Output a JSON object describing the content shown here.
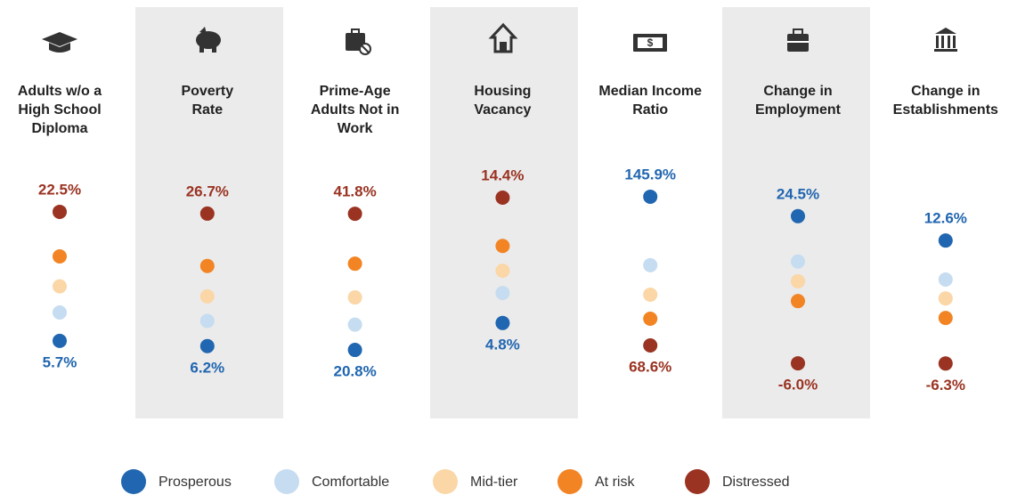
{
  "chart_data": {
    "type": "dot",
    "series": [
      {
        "name": "Prosperous",
        "color": "#2166b0"
      },
      {
        "name": "Comfortable",
        "color": "#c6dcf1"
      },
      {
        "name": "Mid-tier",
        "color": "#fbd6a6"
      },
      {
        "name": "At risk",
        "color": "#f28424"
      },
      {
        "name": "Distressed",
        "color": "#9a3322"
      }
    ],
    "panels": [
      {
        "title": [
          "Adults w/o a",
          "High School",
          "Diploma"
        ],
        "values": [
          5.7,
          9.4,
          12.8,
          16.7,
          22.5
        ],
        "value_labels": [
          "5.7%",
          null,
          null,
          null,
          "22.5%"
        ],
        "ylim": [
          1.4,
          26.9
        ]
      },
      {
        "title": [
          "Poverty",
          "Rate"
        ],
        "values": [
          6.2,
          10.1,
          13.9,
          18.6,
          26.7
        ],
        "value_labels": [
          "6.2%",
          null,
          null,
          null,
          "26.7%"
        ],
        "ylim": [
          1.9,
          32.2
        ]
      },
      {
        "title": [
          "Prime-Age",
          "Adults Not in",
          "Work"
        ],
        "values": [
          20.8,
          24.7,
          28.9,
          34.1,
          41.8
        ],
        "value_labels": [
          "20.8%",
          null,
          null,
          null,
          "41.8%"
        ],
        "ylim": [
          17.1,
          47.3
        ]
      },
      {
        "title": [
          "Housing",
          "Vacancy"
        ],
        "values": [
          4.8,
          7.1,
          8.8,
          10.7,
          14.4
        ],
        "value_labels": [
          "4.8%",
          null,
          null,
          null,
          "14.4%"
        ],
        "ylim": [
          0.9,
          15.9
        ]
      },
      {
        "title": [
          "Median Income",
          "Ratio"
        ],
        "values": [
          145.9,
          110.3,
          95.0,
          82.5,
          68.6
        ],
        "value_labels": [
          "145.9%",
          null,
          null,
          null,
          "68.6%"
        ],
        "ylim": [
          53.8,
          155.6
        ]
      },
      {
        "title": [
          "Change in",
          "Employment"
        ],
        "values": [
          24.5,
          15.1,
          11.0,
          6.9,
          -6.0
        ],
        "value_labels": [
          "24.5%",
          null,
          null,
          null,
          "-6.0%"
        ],
        "ylim": [
          -8.2,
          32.4
        ]
      },
      {
        "title": [
          "Change in",
          "Establishments"
        ],
        "values": [
          12.6,
          6.6,
          3.7,
          0.7,
          -6.3
        ],
        "value_labels": [
          "12.6%",
          null,
          null,
          null,
          "-6.3%"
        ],
        "ylim": [
          -7.9,
          22.2
        ]
      }
    ]
  }
}
